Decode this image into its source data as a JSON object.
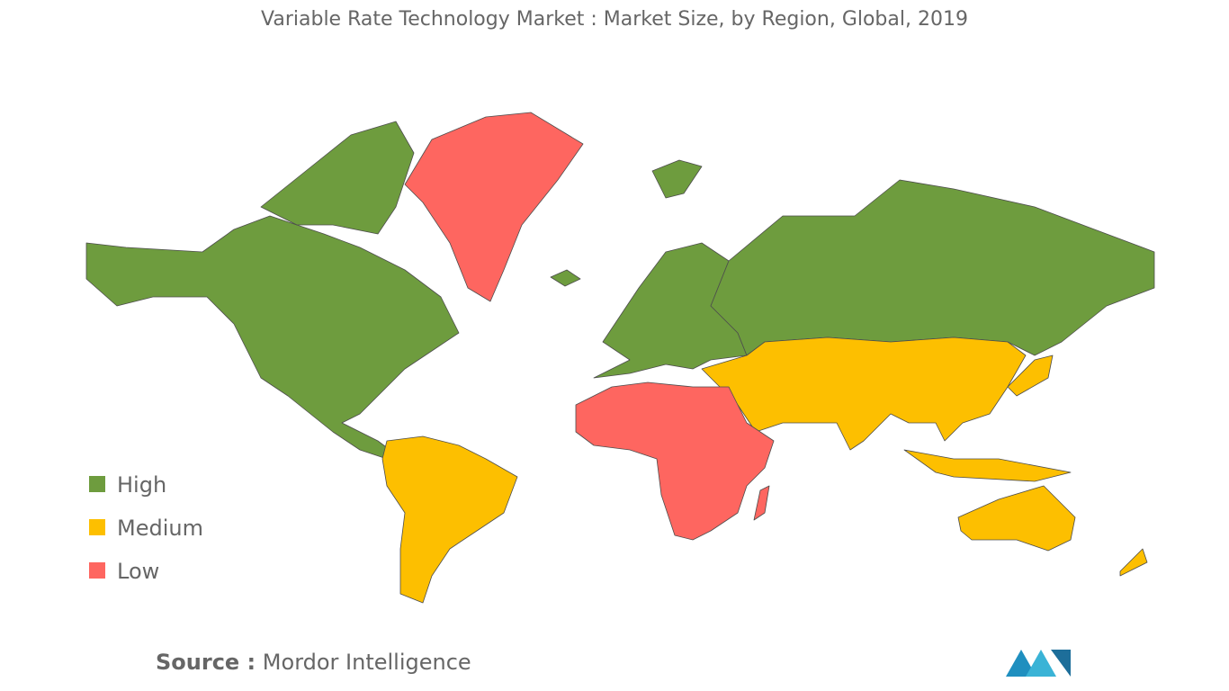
{
  "title": "Variable Rate Technology Market : Market Size, by Region, Global, 2019",
  "legend": [
    {
      "label": "High",
      "color": "#6e9c3e"
    },
    {
      "label": "Medium",
      "color": "#fdbf00"
    },
    {
      "label": "Low",
      "color": "#fe6660"
    }
  ],
  "source": {
    "label": "Source :",
    "text": "Mordor Intelligence"
  }
}
